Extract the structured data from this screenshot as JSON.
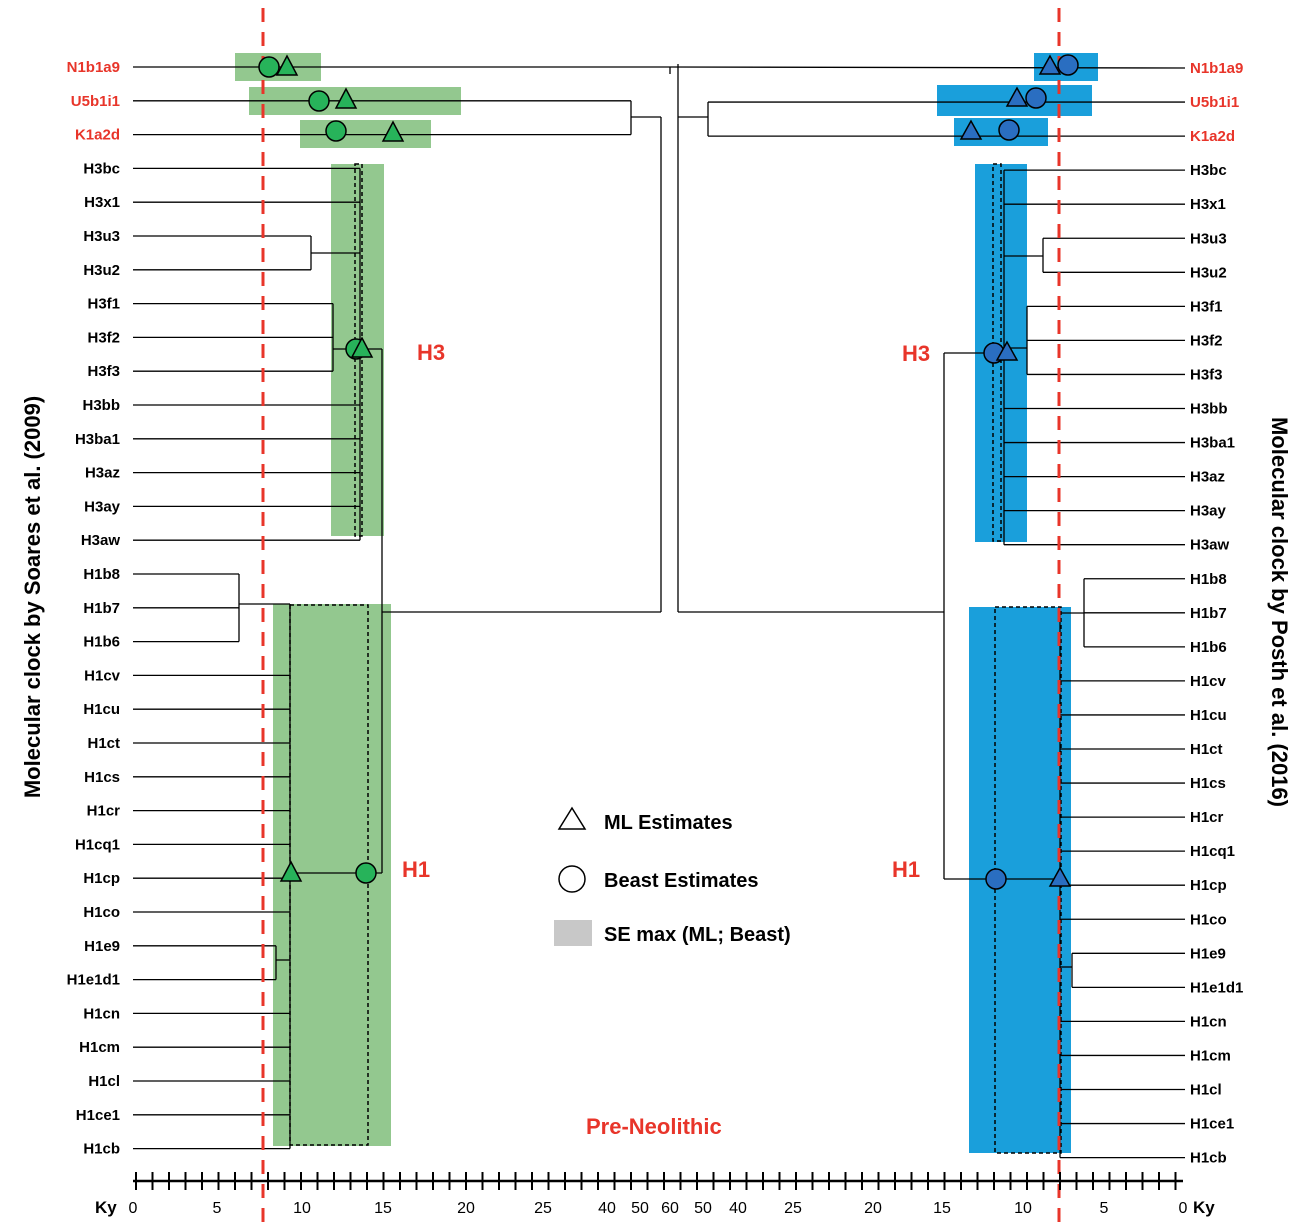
{
  "colors": {
    "red": "#e8352a",
    "green_band": "#93c88f",
    "green_marker": "#27b35a",
    "blue_band": "#1a9fdb",
    "blue_marker": "#2a6ec1",
    "line": "#000000",
    "legend_swatch": "#c8c8c8"
  },
  "titles": {
    "left": "Molecular clock by Soares et al. (2009)",
    "right": "Molecular clock by Posth et al. (2016)"
  },
  "clade_labels": {
    "left_h3": "H3",
    "left_h1": "H1",
    "right_h3": "H3",
    "right_h1": "H1"
  },
  "pre_neolithic": "Pre-Neolithic",
  "legend": {
    "ml": "ML Estimates",
    "beast": "Beast Estimates",
    "se": "SE max (ML; Beast)"
  },
  "axis": {
    "unit": "Ky",
    "left_ticks": [
      "0",
      "5",
      "10",
      "15",
      "20",
      "25",
      "40",
      "50",
      "60"
    ],
    "right_ticks": [
      "50",
      "40",
      "25",
      "20",
      "15",
      "10",
      "5",
      "0"
    ]
  },
  "left_taxa": [
    "N1b1a9",
    "U5b1i1",
    "K1a2d",
    "H3bc",
    "H3x1",
    "H3u3",
    "H3u2",
    "H3f1",
    "H3f2",
    "H3f3",
    "H3bb",
    "H3ba1",
    "H3az",
    "H3ay",
    "H3aw",
    "H1b8",
    "H1b7",
    "H1b6",
    "H1cv",
    "H1cu",
    "H1ct",
    "H1cs",
    "H1cr",
    "H1cq1",
    "H1cp",
    "H1co",
    "H1e9",
    "H1e1d1",
    "H1cn",
    "H1cm",
    "H1cl",
    "H1ce1",
    "H1cb"
  ],
  "right_taxa": [
    "N1b1a9",
    "U5b1i1",
    "K1a2d",
    "H3bc",
    "H3x1",
    "H3u3",
    "H3u2",
    "H3f1",
    "H3f2",
    "H3f3",
    "H3bb",
    "H3ba1",
    "H3az",
    "H3ay",
    "H3aw",
    "H1b8",
    "H1b7",
    "H1b6",
    "H1cv",
    "H1cu",
    "H1ct",
    "H1cs",
    "H1cr",
    "H1cq1",
    "H1cp",
    "H1co",
    "H1e9",
    "H1e1d1",
    "H1cn",
    "H1cm",
    "H1cl",
    "H1ce1",
    "H1cb"
  ],
  "outgroup_count": 3
}
